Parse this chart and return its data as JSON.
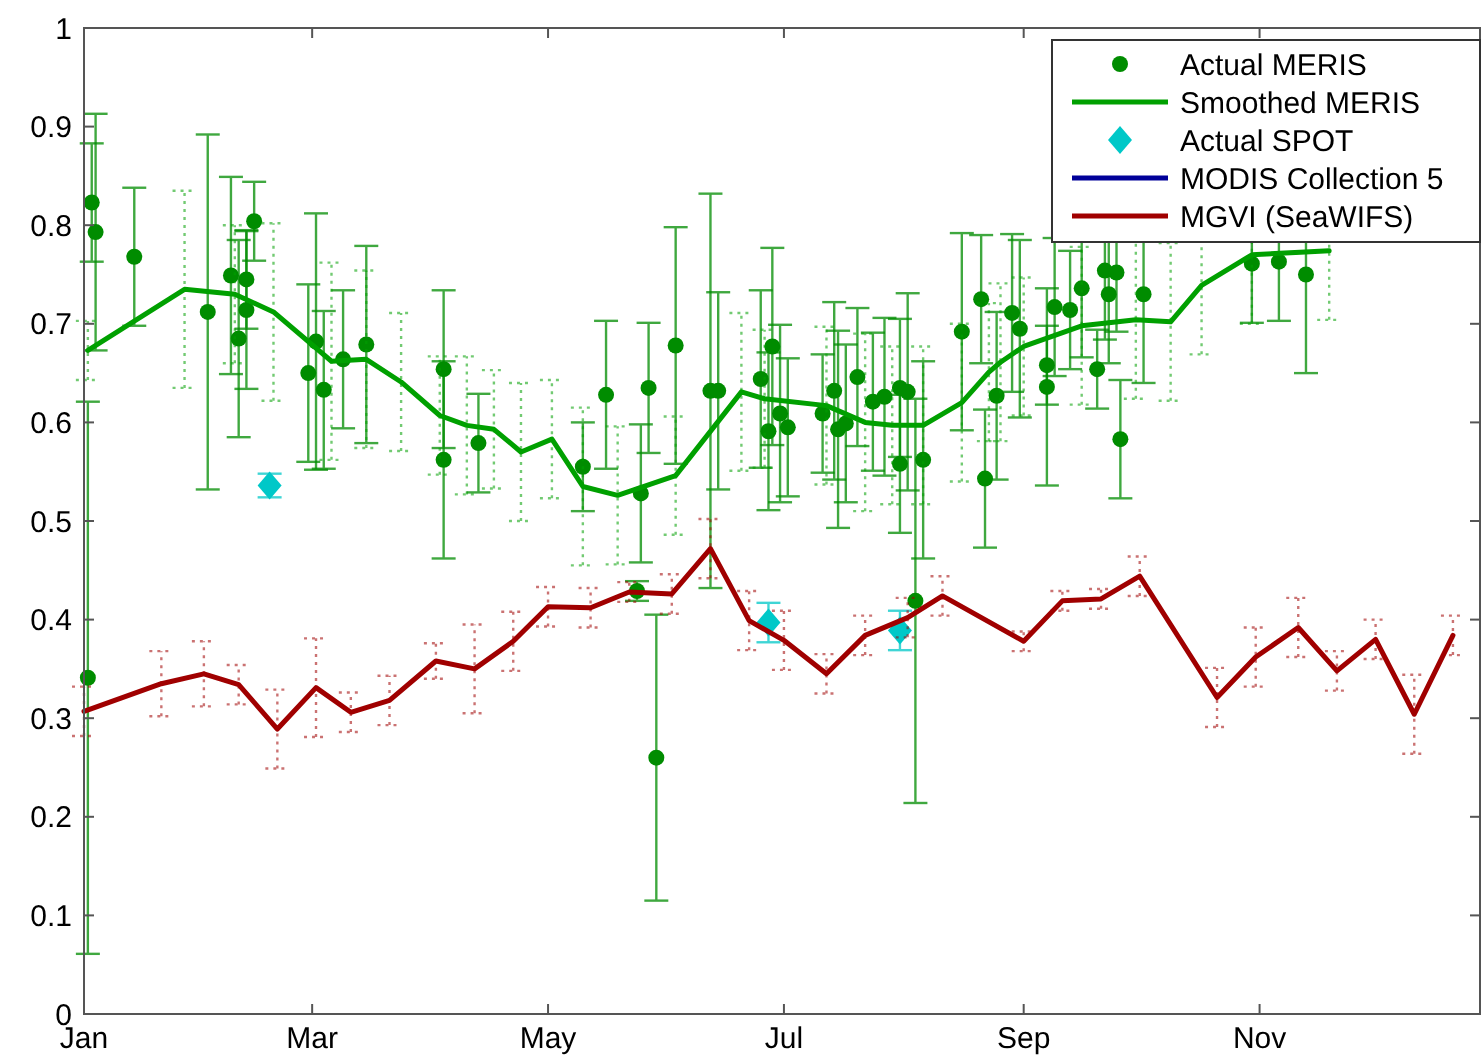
{
  "chart_data": {
    "type": "line",
    "xlim": [
      "--01-01",
      "--12-28"
    ],
    "ylim": [
      0,
      1
    ],
    "xticks": [
      {
        "value": "--01-01",
        "label": "Jan"
      },
      {
        "value": "--03-01",
        "label": "Mar"
      },
      {
        "value": "--05-01",
        "label": "May"
      },
      {
        "value": "--07-01",
        "label": "Jul"
      },
      {
        "value": "--09-01",
        "label": "Sep"
      },
      {
        "value": "--11-01",
        "label": "Nov"
      }
    ],
    "yticks": [
      0,
      0.1,
      0.2,
      0.3,
      0.4,
      0.5,
      0.6,
      0.7,
      0.8,
      0.9,
      1
    ],
    "grid": false,
    "legend": "top right",
    "series": [
      {
        "name": "Actual MERIS",
        "type": "scatter",
        "marker": "circle",
        "color": "#008c00",
        "x": [
          "--01-02",
          "--01-03",
          "--01-04",
          "--01-14",
          "--02-02",
          "--02-08",
          "--02-10",
          "--02-12",
          "--02-12",
          "--02-14",
          "--02-28",
          "--03-02",
          "--03-04",
          "--03-09",
          "--03-15",
          "--04-04",
          "--04-04",
          "--04-13",
          "--05-10",
          "--05-16",
          "--05-24",
          "--05-25",
          "--05-27",
          "--05-29",
          "--06-03",
          "--06-12",
          "--06-14",
          "--06-25",
          "--06-27",
          "--06-28",
          "--06-30",
          "--07-02",
          "--07-11",
          "--07-14",
          "--07-15",
          "--07-17",
          "--07-20",
          "--07-24",
          "--07-27",
          "--07-31",
          "--07-31",
          "--08-02",
          "--08-04",
          "--08-06",
          "--08-16",
          "--08-21",
          "--08-22",
          "--08-25",
          "--08-29",
          "--08-31",
          "--09-07",
          "--09-07",
          "--09-09",
          "--09-13",
          "--09-16",
          "--09-20",
          "--09-22",
          "--09-23",
          "--09-25",
          "--09-26",
          "--10-02",
          "--10-30",
          "--11-06",
          "--11-13"
        ],
        "values": [
          0.341,
          0.823,
          0.793,
          0.768,
          0.712,
          0.749,
          0.685,
          0.745,
          0.714,
          0.804,
          0.65,
          0.682,
          0.633,
          0.664,
          0.679,
          0.654,
          0.562,
          0.579,
          0.555,
          0.628,
          0.429,
          0.528,
          0.635,
          0.26,
          0.678,
          0.632,
          0.632,
          0.644,
          0.591,
          0.677,
          0.609,
          0.595,
          0.609,
          0.632,
          0.593,
          0.599,
          0.646,
          0.621,
          0.626,
          0.635,
          0.558,
          0.631,
          0.419,
          0.562,
          0.692,
          0.725,
          0.543,
          0.627,
          0.711,
          0.695,
          0.658,
          0.636,
          0.717,
          0.714,
          0.736,
          0.654,
          0.754,
          0.73,
          0.752,
          0.583,
          0.73,
          0.761,
          0.763,
          0.75
        ],
        "errors": [
          0.28,
          0.06,
          0.12,
          0.07,
          0.18,
          0.1,
          0.1,
          0.05,
          0.08,
          0.04,
          0.09,
          0.13,
          0.08,
          0.07,
          0.1,
          0.08,
          0.1,
          0.05,
          0.045,
          0.075,
          0.01,
          0.07,
          0.066,
          0.145,
          0.12,
          0.2,
          0.1,
          0.09,
          0.08,
          0.1,
          0.09,
          0.07,
          0.06,
          0.09,
          0.1,
          0.08,
          0.07,
          0.07,
          0.08,
          0.07,
          0.07,
          0.1,
          0.205,
          0.1,
          0.1,
          0.065,
          0.07,
          0.085,
          0.08,
          0.09,
          0.04,
          0.1,
          0.07,
          0.06,
          0.07,
          0.04,
          0.07,
          0.07,
          0.06,
          0.06,
          0.09,
          0.06,
          0.06,
          0.1
        ]
      },
      {
        "name": "Smoothed MERIS",
        "marker": "none",
        "line_style": "solid",
        "color": "#00a000",
        "x": [
          "--01-02",
          "--01-27",
          "--02-09",
          "--02-19",
          "--03-06",
          "--03-15",
          "--03-24",
          "--04-03",
          "--04-10",
          "--04-17",
          "--04-24",
          "--05-02",
          "--05-10",
          "--05-19",
          "--06-03",
          "--06-20",
          "--06-26",
          "--07-12",
          "--07-22",
          "--07-29",
          "--08-06",
          "--08-16",
          "--08-23",
          "--08-26",
          "--09-01",
          "--09-16",
          "--09-30",
          "--10-09",
          "--10-17",
          "--10-30",
          "--11-19"
        ],
        "values": [
          0.673,
          0.735,
          0.73,
          0.712,
          0.662,
          0.664,
          0.641,
          0.607,
          0.597,
          0.593,
          0.57,
          0.583,
          0.535,
          0.526,
          0.546,
          0.631,
          0.624,
          0.617,
          0.6,
          0.597,
          0.597,
          0.62,
          0.651,
          0.661,
          0.677,
          0.698,
          0.704,
          0.702,
          0.739,
          0.77,
          0.774
        ],
        "errors": [
          0.03,
          0.1,
          0.07,
          0.09,
          0.1,
          0.09,
          0.07,
          0.06,
          0.07,
          0.06,
          0.07,
          0.06,
          0.08,
          0.07,
          0.06,
          0.08,
          0.07,
          0.08,
          0.09,
          0.08,
          0.08,
          0.08,
          0.07,
          0.08,
          0.07,
          0.08,
          0.08,
          0.08,
          0.07,
          0.07,
          0.07
        ]
      },
      {
        "name": "Actual SPOT",
        "type": "scatter",
        "marker": "diamond",
        "color": "#00c8c8",
        "x": [
          "--02-18",
          "--06-27",
          "--07-31"
        ],
        "values": [
          0.536,
          0.397,
          0.389
        ],
        "errors": [
          0.012,
          0.02,
          0.02
        ]
      },
      {
        "name": "MODIS Collection 5",
        "marker": "none",
        "line_style": "solid",
        "color": "#000099"
      },
      {
        "name": "MGVI (SeaWIFS)",
        "marker": "none",
        "line_style": "solid",
        "color": "#a00000",
        "x": [
          "--01-01",
          "--01-21",
          "--02-01",
          "--02-10",
          "--02-20",
          "--03-02",
          "--03-11",
          "--03-21",
          "--04-02",
          "--04-12",
          "--04-22",
          "--05-01",
          "--05-12",
          "--05-22",
          "--06-02",
          "--06-12",
          "--06-22",
          "--07-01",
          "--07-12",
          "--07-22",
          "--08-02",
          "--08-11",
          "--09-01",
          "--09-11",
          "--09-21",
          "--10-01",
          "--10-21",
          "--10-31",
          "--11-11",
          "--11-21",
          "--12-01",
          "--12-11",
          "--12-21"
        ],
        "values": [
          0.307,
          0.335,
          0.345,
          0.334,
          0.289,
          0.331,
          0.306,
          0.318,
          0.358,
          0.35,
          0.378,
          0.413,
          0.412,
          0.428,
          0.426,
          0.472,
          0.399,
          0.379,
          0.345,
          0.384,
          0.402,
          0.424,
          0.378,
          0.419,
          0.421,
          0.444,
          0.321,
          0.362,
          0.392,
          0.348,
          0.38,
          0.304,
          0.384
        ],
        "errors": [
          0.025,
          0.033,
          0.033,
          0.02,
          0.04,
          0.05,
          0.02,
          0.025,
          0.018,
          0.045,
          0.03,
          0.02,
          0.02,
          0.01,
          0.02,
          0.03,
          0.03,
          0.03,
          0.02,
          0.02,
          0.02,
          0.02,
          0.01,
          0.01,
          0.01,
          0.02,
          0.03,
          0.03,
          0.03,
          0.02,
          0.02,
          0.04,
          0.02
        ]
      }
    ]
  }
}
